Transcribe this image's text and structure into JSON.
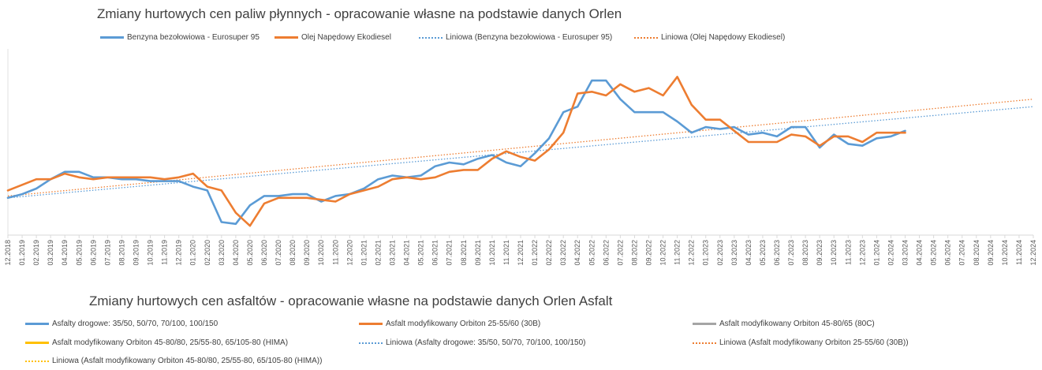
{
  "chart_data": [
    {
      "type": "line",
      "title": "Zmiany hurtowych cen paliw płynnych - opracowanie własne na podstawie danych Orlen",
      "categories": [
        "12.2018",
        "01.2019",
        "02.2019",
        "03.2019",
        "04.2019",
        "05.2019",
        "06.2019",
        "07.2019",
        "08.2019",
        "09.2019",
        "10.2019",
        "11.2019",
        "12.2019",
        "01.2020",
        "02.2020",
        "03.2020",
        "04.2020",
        "05.2020",
        "06.2020",
        "07.2020",
        "08.2020",
        "09.2020",
        "10.2020",
        "11.2020",
        "12.2020",
        "01.2021",
        "02.2021",
        "03.2021",
        "04.2021",
        "05.2021",
        "06.2021",
        "07.2021",
        "08.2021",
        "09.2021",
        "10.2021",
        "11.2021",
        "12.2021",
        "01.2022",
        "02.2022",
        "03.2022",
        "04.2022",
        "05.2022",
        "06.2022",
        "07.2022",
        "08.2022",
        "09.2022",
        "10.2022",
        "11.2022",
        "12.2022",
        "01.2023",
        "02.2023",
        "03.2023",
        "04.2023",
        "05.2023",
        "06.2023",
        "07.2023",
        "08.2023",
        "09.2023",
        "10.2023",
        "11.2023",
        "12.2023",
        "01.2024",
        "02.2024",
        "03.2024",
        "04.2024",
        "05.2024",
        "06.2024",
        "07.2024",
        "08.2024",
        "09.2024",
        "10.2024",
        "11.2024",
        "12.2024"
      ],
      "series": [
        {
          "name": "Benzyna bezołowiowa - Eurosuper 95",
          "color": "#5b9bd5",
          "style": "solid",
          "values": [
            20,
            22,
            25,
            30,
            34,
            34,
            31,
            31,
            30,
            30,
            29,
            29,
            29,
            26,
            24,
            7,
            6,
            16,
            21,
            21,
            22,
            22,
            18,
            21,
            22,
            25,
            30,
            32,
            31,
            32,
            37,
            39,
            38,
            41,
            43,
            39,
            37,
            44,
            52,
            66,
            69,
            83,
            83,
            73,
            66,
            66,
            66,
            61,
            55,
            58,
            57,
            58,
            54,
            55,
            53,
            58,
            58,
            47,
            54,
            49,
            48,
            52,
            53,
            56,
            null,
            null,
            null,
            null,
            null,
            null,
            null,
            null,
            null
          ]
        },
        {
          "name": "Olej Napędowy Ekodiesel",
          "color": "#ed7d31",
          "style": "solid",
          "values": [
            24,
            27,
            30,
            30,
            33,
            31,
            30,
            31,
            31,
            31,
            31,
            30,
            31,
            33,
            26,
            24,
            12,
            5,
            17,
            20,
            20,
            20,
            19,
            18,
            22,
            24,
            26,
            30,
            31,
            30,
            31,
            34,
            35,
            35,
            41,
            45,
            42,
            40,
            46,
            55,
            76,
            77,
            75,
            81,
            77,
            79,
            75,
            85,
            70,
            62,
            62,
            56,
            50,
            50,
            50,
            54,
            53,
            48,
            53,
            53,
            50,
            55,
            55,
            55,
            null,
            null,
            null,
            null,
            null,
            null,
            null,
            null,
            null
          ]
        },
        {
          "name": "Liniowa (Benzyna bezołowiowa - Eurosuper 95)",
          "color": "#5b9bd5",
          "style": "dotted",
          "line": [
            0,
            20,
            72,
            69
          ]
        },
        {
          "name": "Liniowa (Olej Napędowy Ekodiesel)",
          "color": "#ed7d31",
          "style": "dotted",
          "line": [
            0,
            21,
            72,
            73
          ]
        }
      ],
      "ylim": [
        0,
        100
      ],
      "grid": false,
      "legend": "top"
    },
    {
      "type": "line",
      "title": "Zmiany hurtowych cen asfaltów - opracowanie własne na podstawie danych Orlen Asfalt",
      "legend": "bottom",
      "series": [
        {
          "name": "Asfalty drogowe: 35/50, 50/70, 70/100, 100/150",
          "color": "#5b9bd5",
          "style": "solid"
        },
        {
          "name": "Asfalt modyfikowany Orbiton 25-55/60 (30B)",
          "color": "#ed7d31",
          "style": "solid"
        },
        {
          "name": "Asfalt modyfikowany Orbiton 45-80/65 (80C)",
          "color": "#a5a5a5",
          "style": "solid"
        },
        {
          "name": "Asfalt modyfikowany Orbiton 45-80/80, 25/55-80, 65/105-80 (HIMA)",
          "color": "#ffc000",
          "style": "solid"
        },
        {
          "name": "Liniowa (Asfalty drogowe: 35/50, 50/70, 70/100, 100/150)",
          "color": "#5b9bd5",
          "style": "dotted"
        },
        {
          "name": "Liniowa (Asfalt modyfikowany Orbiton 25-55/60 (30B))",
          "color": "#ed7d31",
          "style": "dotted"
        },
        {
          "name": "Liniowa (Asfalt modyfikowany Orbiton 45-80/80, 25/55-80, 65/105-80 (HIMA))",
          "color": "#ffc000",
          "style": "dotted"
        }
      ]
    }
  ]
}
